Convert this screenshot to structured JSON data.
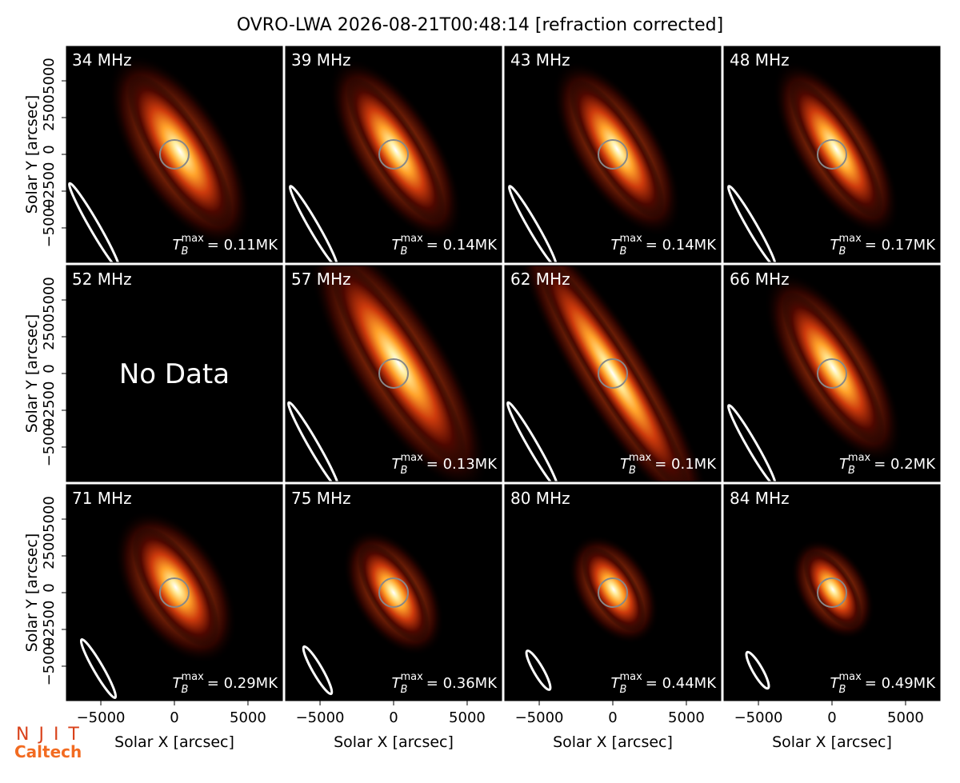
{
  "chart_data": {
    "type": "image-grid",
    "title": "OVRO-LWA 2026-08-21T00:48:14 [refraction corrected]",
    "xlabel": "Solar X [arcsec]",
    "ylabel": "Solar Y [arcsec]",
    "xlim": [
      -7340,
      7340
    ],
    "ylim": [
      -7340,
      7340
    ],
    "xticks": [
      {
        "value": -5000,
        "label": "−5000"
      },
      0,
      5000
    ],
    "yticks": [
      {
        "value": -5000,
        "label": "−5000"
      },
      {
        "value": -2500,
        "label": "−2500"
      },
      0,
      2500,
      5000
    ],
    "tb_symbol": "T",
    "tb_sub": "B",
    "tb_sup": "max",
    "panels": [
      {
        "label": "34 MHz",
        "tb_max": 0.11,
        "tb_max_label": "= 0.11MK"
      },
      {
        "label": "39 MHz",
        "tb_max": 0.14,
        "tb_max_label": "= 0.14MK"
      },
      {
        "label": "43 MHz",
        "tb_max": 0.14,
        "tb_max_label": "= 0.14MK"
      },
      {
        "label": "48 MHz",
        "tb_max": 0.17,
        "tb_max_label": "= 0.17MK"
      },
      {
        "label": "52 MHz",
        "note": "No Data"
      },
      {
        "label": "57 MHz",
        "tb_max": 0.13,
        "tb_max_label": "= 0.13MK"
      },
      {
        "label": "62 MHz",
        "tb_max": 0.1,
        "tb_max_label": "= 0.1MK"
      },
      {
        "label": "66 MHz",
        "tb_max": 0.2,
        "tb_max_label": "= 0.2MK"
      },
      {
        "label": "71 MHz",
        "tb_max": 0.29,
        "tb_max_label": "= 0.29MK"
      },
      {
        "label": "75 MHz",
        "tb_max": 0.36,
        "tb_max_label": "= 0.36MK"
      },
      {
        "label": "80 MHz",
        "tb_max": 0.44,
        "tb_max_label": "= 0.44MK"
      },
      {
        "label": "84 MHz",
        "tb_max": 0.49,
        "tb_max_label": "= 0.49MK"
      }
    ],
    "logos": [
      "NJIT",
      "Caltech"
    ]
  }
}
